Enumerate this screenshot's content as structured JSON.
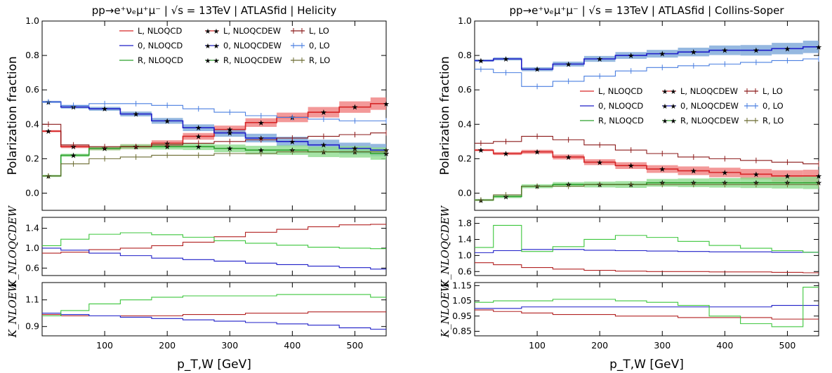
{
  "panels": [
    {
      "title": "pp→e⁺νₑμ⁺μ⁻ | √s = 13TeV | ATLASfid | Helicity",
      "ylabel": "Polarization fraction",
      "k1_label": "K_NLOQCDEW",
      "k2_label": "K_NLOEW",
      "xlabel": "p_T,W [GeV]",
      "legend": [
        "L, NLOQCD",
        "0, NLOQCD",
        "R, NLOQCD",
        "L, NLOQCDEW",
        "0, NLOQCDEW",
        "R, NLOQCDEW",
        "L, LO",
        "0, LO",
        "R, LO"
      ]
    },
    {
      "title": "pp→e⁺νₑμ⁺μ⁻ | √s = 13TeV | ATLASfid | Collins-Soper",
      "ylabel": "Polarization fraction",
      "k1_label": "K_NLOQCDEW",
      "k2_label": "K_NLOEW",
      "xlabel": "p_T,W [GeV]",
      "legend": [
        "L, NLOQCD",
        "0, NLOQCD",
        "R, NLOQCD",
        "L, NLOQCDEW",
        "0, NLOQCDEW",
        "R, NLOQCDEW",
        "L, LO",
        "0, LO",
        "R, LO"
      ]
    }
  ],
  "colors": {
    "L": "#d62728",
    "0": "#1f1fc8",
    "R": "#2ca02c",
    "L_LO": "#8b1a1a",
    "0_LO": "#4a7fe0",
    "R_LO": "#6b6b30"
  },
  "chart_data": [
    {
      "type": "line",
      "title": "pp→e⁺νₑμ⁺μ⁻ | √s = 13TeV | ATLASfid | Helicity",
      "xlabel": "p_T,W [GeV]",
      "ylabel": "Polarization fraction",
      "xlim": [
        0,
        550
      ],
      "ylim": [
        -0.1,
        1.0
      ],
      "xticks": [
        100,
        200,
        300,
        400,
        500
      ],
      "yticks": [
        0.0,
        0.2,
        0.4,
        0.6,
        0.8,
        1.0
      ],
      "x": [
        10,
        50,
        100,
        150,
        200,
        250,
        300,
        350,
        400,
        450,
        500,
        550
      ],
      "series": [
        {
          "name": "L, NLOQCD",
          "values": [
            0.36,
            0.27,
            0.26,
            0.27,
            0.29,
            0.33,
            0.37,
            0.41,
            0.44,
            0.47,
            0.5,
            0.52
          ]
        },
        {
          "name": "0, NLOQCD",
          "values": [
            0.53,
            0.5,
            0.49,
            0.46,
            0.42,
            0.38,
            0.35,
            0.32,
            0.3,
            0.28,
            0.26,
            0.25
          ]
        },
        {
          "name": "R, NLOQCD",
          "values": [
            0.1,
            0.22,
            0.26,
            0.27,
            0.27,
            0.27,
            0.26,
            0.25,
            0.25,
            0.24,
            0.24,
            0.23
          ]
        },
        {
          "name": "L, NLOQCDEW",
          "values": [
            0.36,
            0.27,
            0.26,
            0.27,
            0.29,
            0.33,
            0.37,
            0.41,
            0.44,
            0.47,
            0.5,
            0.52
          ]
        },
        {
          "name": "0, NLOQCDEW",
          "values": [
            0.53,
            0.5,
            0.49,
            0.46,
            0.42,
            0.38,
            0.35,
            0.32,
            0.3,
            0.28,
            0.26,
            0.25
          ]
        },
        {
          "name": "R, NLOQCDEW",
          "values": [
            0.1,
            0.22,
            0.26,
            0.27,
            0.27,
            0.27,
            0.26,
            0.25,
            0.25,
            0.24,
            0.24,
            0.23
          ]
        },
        {
          "name": "L, LO",
          "values": [
            0.4,
            0.28,
            0.27,
            0.27,
            0.28,
            0.29,
            0.3,
            0.31,
            0.32,
            0.33,
            0.34,
            0.35
          ]
        },
        {
          "name": "0, LO",
          "values": [
            0.53,
            0.51,
            0.52,
            0.52,
            0.51,
            0.49,
            0.47,
            0.45,
            0.44,
            0.43,
            0.42,
            0.42
          ]
        },
        {
          "name": "R, LO",
          "values": [
            0.1,
            0.17,
            0.2,
            0.21,
            0.22,
            0.22,
            0.23,
            0.23,
            0.24,
            0.24,
            0.24,
            0.24
          ]
        }
      ],
      "ratio1": {
        "ylabel": "K_NLOQCDEW",
        "ylim": [
          0.45,
          1.62
        ],
        "yticks": [
          0.6,
          1.0,
          1.4
        ],
        "series": [
          {
            "name": "L",
            "values": [
              0.9,
              0.92,
              0.97,
              1.0,
              1.05,
              1.12,
              1.23,
              1.32,
              1.38,
              1.43,
              1.47,
              1.48
            ]
          },
          {
            "name": "0",
            "values": [
              1.0,
              0.96,
              0.9,
              0.85,
              0.8,
              0.77,
              0.74,
              0.7,
              0.67,
              0.64,
              0.61,
              0.58
            ]
          },
          {
            "name": "R",
            "values": [
              1.05,
              1.18,
              1.28,
              1.31,
              1.27,
              1.22,
              1.15,
              1.1,
              1.06,
              1.02,
              1.0,
              0.99
            ]
          }
        ]
      },
      "ratio2": {
        "ylabel": "K_NLOEW",
        "ylim": [
          0.83,
          1.23
        ],
        "yticks": [
          0.9,
          1.1
        ],
        "series": [
          {
            "name": "L",
            "values": [
              0.99,
              0.98,
              0.98,
              0.98,
              0.98,
              0.99,
              0.99,
              1.0,
              1.0,
              1.01,
              1.01,
              1.01
            ]
          },
          {
            "name": "0",
            "values": [
              1.0,
              0.99,
              0.98,
              0.97,
              0.96,
              0.95,
              0.94,
              0.93,
              0.92,
              0.91,
              0.89,
              0.88
            ]
          },
          {
            "name": "R",
            "values": [
              0.98,
              1.02,
              1.07,
              1.1,
              1.12,
              1.13,
              1.13,
              1.13,
              1.14,
              1.14,
              1.14,
              1.12
            ]
          }
        ]
      }
    },
    {
      "type": "line",
      "title": "pp→e⁺νₑμ⁺μ⁻ | √s = 13TeV | ATLASfid | Collins-Soper",
      "xlabel": "p_T,W [GeV]",
      "ylabel": "Polarization fraction",
      "xlim": [
        0,
        550
      ],
      "ylim": [
        -0.1,
        1.0
      ],
      "xticks": [
        100,
        200,
        300,
        400,
        500
      ],
      "yticks": [
        0.0,
        0.2,
        0.4,
        0.6,
        0.8,
        1.0
      ],
      "x": [
        10,
        50,
        100,
        150,
        200,
        250,
        300,
        350,
        400,
        450,
        500,
        550
      ],
      "series": [
        {
          "name": "L, NLOQCD",
          "values": [
            0.25,
            0.23,
            0.24,
            0.21,
            0.18,
            0.16,
            0.14,
            0.13,
            0.12,
            0.11,
            0.1,
            0.1
          ]
        },
        {
          "name": "0, NLOQCD",
          "values": [
            0.77,
            0.78,
            0.72,
            0.75,
            0.78,
            0.8,
            0.81,
            0.82,
            0.83,
            0.83,
            0.84,
            0.85
          ]
        },
        {
          "name": "R, NLOQCD",
          "values": [
            -0.04,
            -0.02,
            0.04,
            0.05,
            0.05,
            0.05,
            0.06,
            0.06,
            0.06,
            0.06,
            0.06,
            0.06
          ]
        },
        {
          "name": "L, NLOQCDEW",
          "values": [
            0.25,
            0.23,
            0.24,
            0.21,
            0.18,
            0.16,
            0.14,
            0.13,
            0.12,
            0.11,
            0.1,
            0.1
          ]
        },
        {
          "name": "0, NLOQCDEW",
          "values": [
            0.77,
            0.78,
            0.72,
            0.75,
            0.78,
            0.8,
            0.81,
            0.82,
            0.83,
            0.83,
            0.84,
            0.85
          ]
        },
        {
          "name": "R, NLOQCDEW",
          "values": [
            -0.04,
            -0.02,
            0.04,
            0.05,
            0.05,
            0.05,
            0.06,
            0.06,
            0.06,
            0.06,
            0.06,
            0.06
          ]
        },
        {
          "name": "L, LO",
          "values": [
            0.29,
            0.3,
            0.33,
            0.31,
            0.28,
            0.25,
            0.23,
            0.21,
            0.2,
            0.19,
            0.18,
            0.17
          ]
        },
        {
          "name": "0, LO",
          "values": [
            0.72,
            0.7,
            0.62,
            0.65,
            0.68,
            0.71,
            0.73,
            0.74,
            0.75,
            0.76,
            0.77,
            0.78
          ]
        },
        {
          "name": "R, LO",
          "values": [
            -0.04,
            -0.01,
            0.04,
            0.04,
            0.05,
            0.05,
            0.05,
            0.05,
            0.05,
            0.05,
            0.05,
            0.05
          ]
        }
      ],
      "ratio1": {
        "ylabel": "K_NLOQCDEW",
        "ylim": [
          0.5,
          1.95
        ],
        "yticks": [
          0.6,
          1.0,
          1.4,
          1.8
        ],
        "series": [
          {
            "name": "L",
            "values": [
              0.82,
              0.77,
              0.7,
              0.66,
              0.63,
              0.61,
              0.6,
              0.6,
              0.59,
              0.59,
              0.58,
              0.57
            ]
          },
          {
            "name": "0",
            "values": [
              1.07,
              1.12,
              1.15,
              1.15,
              1.13,
              1.12,
              1.11,
              1.1,
              1.09,
              1.09,
              1.08,
              1.08
            ]
          },
          {
            "name": "R",
            "values": [
              1.2,
              1.75,
              1.1,
              1.22,
              1.4,
              1.5,
              1.45,
              1.35,
              1.25,
              1.18,
              1.12,
              1.08
            ]
          }
        ]
      },
      "ratio2": {
        "ylabel": "K_NLOEW",
        "ylim": [
          0.82,
          1.17
        ],
        "yticks": [
          0.85,
          0.95,
          1.05,
          1.15
        ],
        "series": [
          {
            "name": "L",
            "values": [
              0.99,
              0.98,
              0.97,
              0.96,
              0.96,
              0.95,
              0.95,
              0.94,
              0.94,
              0.94,
              0.93,
              0.93
            ]
          },
          {
            "name": "0",
            "values": [
              1.0,
              1.0,
              1.01,
              1.01,
              1.01,
              1.01,
              1.01,
              1.01,
              1.01,
              1.01,
              1.02,
              1.02
            ]
          },
          {
            "name": "R",
            "values": [
              1.04,
              1.05,
              1.05,
              1.06,
              1.06,
              1.05,
              1.04,
              1.02,
              0.95,
              0.9,
              0.88,
              1.14
            ]
          }
        ]
      }
    }
  ]
}
